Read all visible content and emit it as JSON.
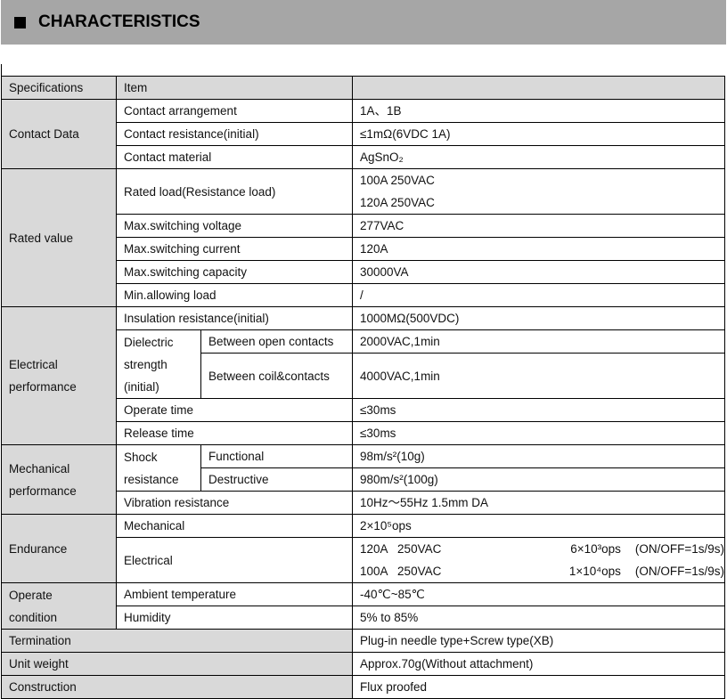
{
  "title": "CHARACTERISTICS",
  "header": {
    "spec": "Specifications",
    "item": "Item",
    "value": ""
  },
  "contact": {
    "group": "Contact Data",
    "arr": "Contact arrangement",
    "arr_v": "1A、1B",
    "res": "Contact resistance(initial)",
    "res_v": "≤1mΩ(6VDC 1A)",
    "mat": "Contact material",
    "mat_v": "AgSnO₂"
  },
  "rated": {
    "group": "Rated value",
    "load": "Rated load(Resistance load)",
    "load_v1": "100A 250VAC",
    "load_v2": "120A 250VAC",
    "volt": "Max.switching voltage",
    "volt_v": "277VAC",
    "cur": "Max.switching current",
    "cur_v": "120A",
    "cap": "Max.switching capacity",
    "cap_v": "30000VA",
    "min": "Min.allowing load",
    "min_v": "/"
  },
  "elec": {
    "group1": "Electrical",
    "group2": "performance",
    "ins": "Insulation resistance(initial)",
    "ins_v": "1000MΩ(500VDC)",
    "die1": "Dielectric",
    "die2": "strength",
    "die3": "(initial)",
    "open": "Between open contacts",
    "open_v": "2000VAC,1min",
    "coil": "Between coil&contacts",
    "coil_v": "4000VAC,1min",
    "op": "Operate time",
    "op_v": "≤30ms",
    "rel": "Release time",
    "rel_v": "≤30ms"
  },
  "mech": {
    "group1": "Mechanical",
    "group2": "performance",
    "shock1": "Shock",
    "shock2": "resistance",
    "func": "Functional",
    "func_v": "98m/s²(10g)",
    "dest": "Destructive",
    "dest_v": "980m/s²(100g)",
    "vib": "Vibration resistance",
    "vib_v": "10Hz～55Hz 1.5mm DA"
  },
  "endur": {
    "group": "Endurance",
    "mech": "Mechanical",
    "mech_v": "2×10⁵ops",
    "elec": "Electrical",
    "lines": [
      {
        "load": "120A   250VAC",
        "ops": "6×10³ops",
        "cond": "(ON/OFF=1s/9s)"
      },
      {
        "load": "100A   250VAC",
        "ops": "1×10⁴ops",
        "cond": "(ON/OFF=1s/9s)"
      }
    ]
  },
  "cond": {
    "group1": "Operate",
    "group2": "condition",
    "amb": "Ambient temperature",
    "amb_v": "-40℃~85℃",
    "hum": "Humidity",
    "hum_v": "5% to 85%"
  },
  "term": {
    "label": "Termination",
    "value": "Plug-in needle type+Screw type(XB)"
  },
  "weight": {
    "label": "Unit weight",
    "value": "Approx.70g(Without attachment)"
  },
  "constr": {
    "label": "Construction",
    "value": "Flux proofed"
  }
}
